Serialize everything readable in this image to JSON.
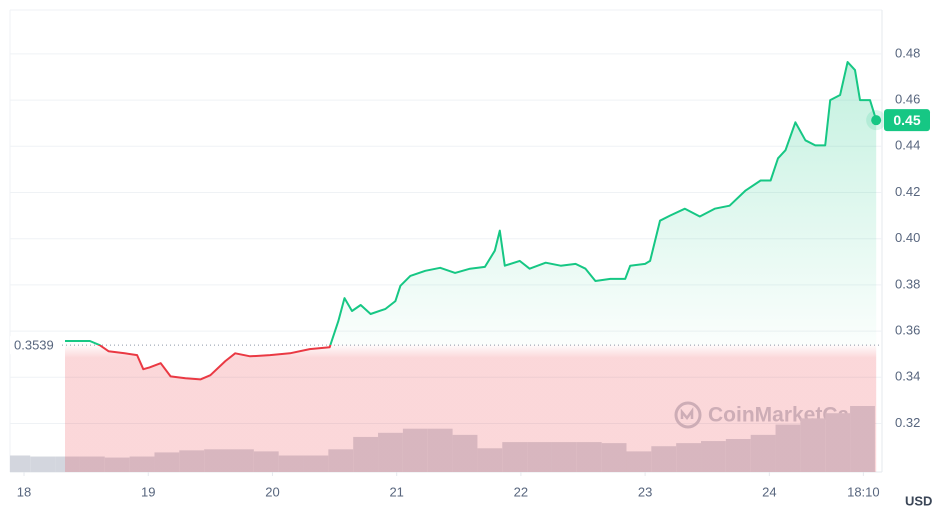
{
  "chart_data": {
    "type": "line",
    "x": [
      18.33,
      18.53,
      18.61,
      18.68,
      18.81,
      18.91,
      18.96,
      19.01,
      19.1,
      19.18,
      19.3,
      19.42,
      19.5,
      19.62,
      19.7,
      19.82,
      19.98,
      20.14,
      20.3,
      20.46,
      20.53,
      20.58,
      20.64,
      20.71,
      20.79,
      20.91,
      20.99,
      21.03,
      21.11,
      21.23,
      21.35,
      21.47,
      21.59,
      21.71,
      21.79,
      21.83,
      21.87,
      21.99,
      22.07,
      22.2,
      22.32,
      22.44,
      22.52,
      22.6,
      22.72,
      22.84,
      22.88,
      23.0,
      23.04,
      23.12,
      23.2,
      23.32,
      23.44,
      23.56,
      23.68,
      23.81,
      23.93,
      24.01,
      24.07,
      24.13,
      24.21,
      24.29,
      24.37,
      24.45,
      24.49,
      24.57,
      24.63,
      24.69,
      24.73,
      24.81,
      24.86
    ],
    "series": [
      {
        "name": "Price",
        "color": "#16c784",
        "color_below": "#ea3943",
        "values": [
          0.3557,
          0.3557,
          0.3539,
          0.3513,
          0.3504,
          0.3496,
          0.3435,
          0.3443,
          0.3461,
          0.3404,
          0.3396,
          0.3391,
          0.3409,
          0.347,
          0.3504,
          0.3491,
          0.3496,
          0.3504,
          0.3522,
          0.353,
          0.3643,
          0.3743,
          0.3687,
          0.3713,
          0.3674,
          0.3696,
          0.373,
          0.3796,
          0.3839,
          0.3861,
          0.3874,
          0.3852,
          0.387,
          0.3878,
          0.3948,
          0.4035,
          0.3883,
          0.3904,
          0.387,
          0.3896,
          0.3883,
          0.3891,
          0.387,
          0.3817,
          0.3826,
          0.3826,
          0.3883,
          0.3891,
          0.3904,
          0.4078,
          0.41,
          0.413,
          0.4096,
          0.413,
          0.4143,
          0.4209,
          0.4252,
          0.4252,
          0.4348,
          0.4383,
          0.4504,
          0.4426,
          0.4404,
          0.4404,
          0.46,
          0.4622,
          0.4765,
          0.473,
          0.46,
          0.46,
          0.4513
        ]
      }
    ],
    "current_label": "0.45",
    "baseline": 0.3539,
    "volume": {
      "color": "#d3d6de",
      "x": [
        17.95,
        18.15,
        18.35,
        18.55,
        18.75,
        18.95,
        19.15,
        19.35,
        19.55,
        19.75,
        19.95,
        20.15,
        20.35,
        20.55,
        20.75,
        20.95,
        21.15,
        21.35,
        21.55,
        21.75,
        21.95,
        22.15,
        22.35,
        22.55,
        22.75,
        22.95,
        23.15,
        23.35,
        23.55,
        23.75,
        23.95,
        24.15,
        24.35,
        24.55,
        24.75
      ],
      "values": [
        16,
        15,
        15,
        15,
        14,
        15,
        19,
        21,
        22,
        22,
        20,
        16,
        16,
        22,
        34,
        38,
        42,
        42,
        36,
        23,
        29,
        29,
        29,
        29,
        28,
        20,
        25,
        28,
        30,
        32,
        36,
        46,
        52,
        57,
        64
      ]
    },
    "xlim": [
      17.887,
      24.907
    ],
    "xticks": [
      18,
      19,
      20,
      21,
      22,
      23,
      24,
      {
        "value": 24.757,
        "label": "18:10"
      }
    ],
    "ylim": [
      0.299,
      0.499
    ],
    "yticks": [
      0.32,
      0.34,
      0.36,
      0.38,
      0.4,
      0.42,
      0.44,
      0.46,
      0.48
    ],
    "ytick_labels": [
      "0.32",
      "0.34",
      "0.36",
      "0.38",
      "0.40",
      "0.42",
      "0.44",
      "0.46",
      "0.48"
    ],
    "grid": true,
    "unit_label": "USD",
    "watermark": "CoinMarketCap"
  }
}
